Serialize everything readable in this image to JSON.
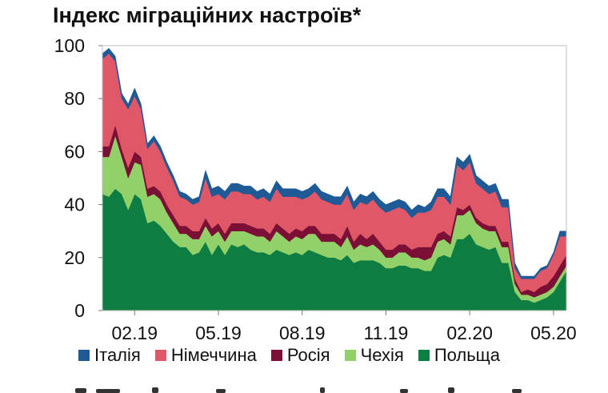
{
  "chart_data": {
    "type": "area",
    "stacked": true,
    "title": "Індекс міграційних настроїв*",
    "xlabel": "",
    "ylabel": "",
    "ylim": [
      0,
      100
    ],
    "yticks": [
      0,
      20,
      40,
      60,
      80,
      100
    ],
    "xticks": [
      {
        "label": "02.19",
        "index": 5
      },
      {
        "label": "05.19",
        "index": 18
      },
      {
        "label": "08.19",
        "index": 31
      },
      {
        "label": "11.19",
        "index": 44
      },
      {
        "label": "02.20",
        "index": 57
      },
      {
        "label": "05.20",
        "index": 70
      }
    ],
    "grid": false,
    "legend_position": "bottom",
    "series": [
      {
        "name": "Польща",
        "color": "#0e7d41",
        "values": [
          44,
          43,
          46,
          44,
          38,
          44,
          42,
          33,
          34,
          32,
          29,
          26,
          24,
          24,
          21,
          22,
          26,
          21,
          25,
          21,
          25,
          24,
          25,
          23,
          22,
          22,
          21,
          23,
          22,
          21,
          22,
          21,
          23,
          22,
          21,
          20,
          20,
          19,
          21,
          18,
          19,
          19,
          19,
          18,
          16,
          16,
          17,
          17,
          16,
          16,
          15,
          15,
          20,
          21,
          20,
          27,
          27,
          29,
          25,
          24,
          23,
          24,
          18,
          18,
          7,
          4,
          4,
          3,
          4,
          5,
          7,
          11,
          15
        ]
      },
      {
        "name": "Чехія",
        "color": "#92d06a",
        "values": [
          14,
          15,
          20,
          14,
          12,
          12,
          13,
          10,
          10,
          10,
          8,
          7,
          5,
          5,
          6,
          5,
          6,
          7,
          5,
          5,
          5,
          6,
          5,
          6,
          6,
          6,
          5,
          7,
          6,
          5,
          6,
          6,
          6,
          7,
          5,
          6,
          6,
          5,
          7,
          5,
          6,
          5,
          6,
          5,
          4,
          4,
          5,
          5,
          4,
          4,
          4,
          5,
          6,
          6,
          5,
          9,
          9,
          9,
          8,
          7,
          7,
          6,
          6,
          6,
          3,
          2,
          2,
          2,
          2,
          2,
          2,
          2,
          2
        ]
      },
      {
        "name": "Росія",
        "color": "#7b0f35",
        "values": [
          4,
          4,
          4,
          3,
          4,
          4,
          3,
          3,
          3,
          3,
          3,
          3,
          3,
          3,
          3,
          3,
          3,
          3,
          3,
          3,
          3,
          3,
          3,
          3,
          3,
          3,
          3,
          3,
          3,
          3,
          3,
          3,
          3,
          3,
          3,
          3,
          3,
          3,
          4,
          3,
          4,
          3,
          4,
          3,
          3,
          3,
          3,
          3,
          3,
          4,
          5,
          4,
          3,
          3,
          3,
          3,
          2,
          2,
          2,
          2,
          2,
          2,
          2,
          2,
          2,
          1,
          2,
          2,
          3,
          3,
          4,
          4,
          4
        ]
      },
      {
        "name": "Німеччина",
        "color": "#e05868",
        "values": [
          33,
          35,
          24,
          19,
          22,
          21,
          18,
          15,
          17,
          15,
          14,
          13,
          11,
          10,
          10,
          11,
          15,
          12,
          11,
          13,
          12,
          12,
          11,
          12,
          11,
          12,
          12,
          13,
          12,
          14,
          12,
          12,
          11,
          13,
          13,
          12,
          11,
          13,
          12,
          12,
          12,
          13,
          13,
          13,
          14,
          15,
          14,
          13,
          12,
          13,
          13,
          14,
          14,
          13,
          12,
          16,
          15,
          16,
          13,
          13,
          12,
          13,
          13,
          13,
          4,
          5,
          4,
          5,
          6,
          6,
          8,
          11,
          7
        ]
      },
      {
        "name": "Італія",
        "color": "#1e5a96",
        "values": [
          2,
          2,
          2,
          2,
          2,
          3,
          2,
          2,
          2,
          2,
          2,
          2,
          2,
          2,
          2,
          2,
          3,
          3,
          3,
          3,
          3,
          3,
          3,
          3,
          3,
          3,
          3,
          3,
          3,
          3,
          3,
          3,
          3,
          3,
          3,
          3,
          3,
          3,
          3,
          3,
          3,
          3,
          3,
          3,
          3,
          3,
          3,
          3,
          3,
          3,
          2,
          3,
          3,
          3,
          3,
          3,
          3,
          3,
          3,
          3,
          3,
          3,
          3,
          3,
          2,
          1,
          1,
          1,
          1,
          1,
          1,
          2,
          2
        ]
      }
    ]
  }
}
